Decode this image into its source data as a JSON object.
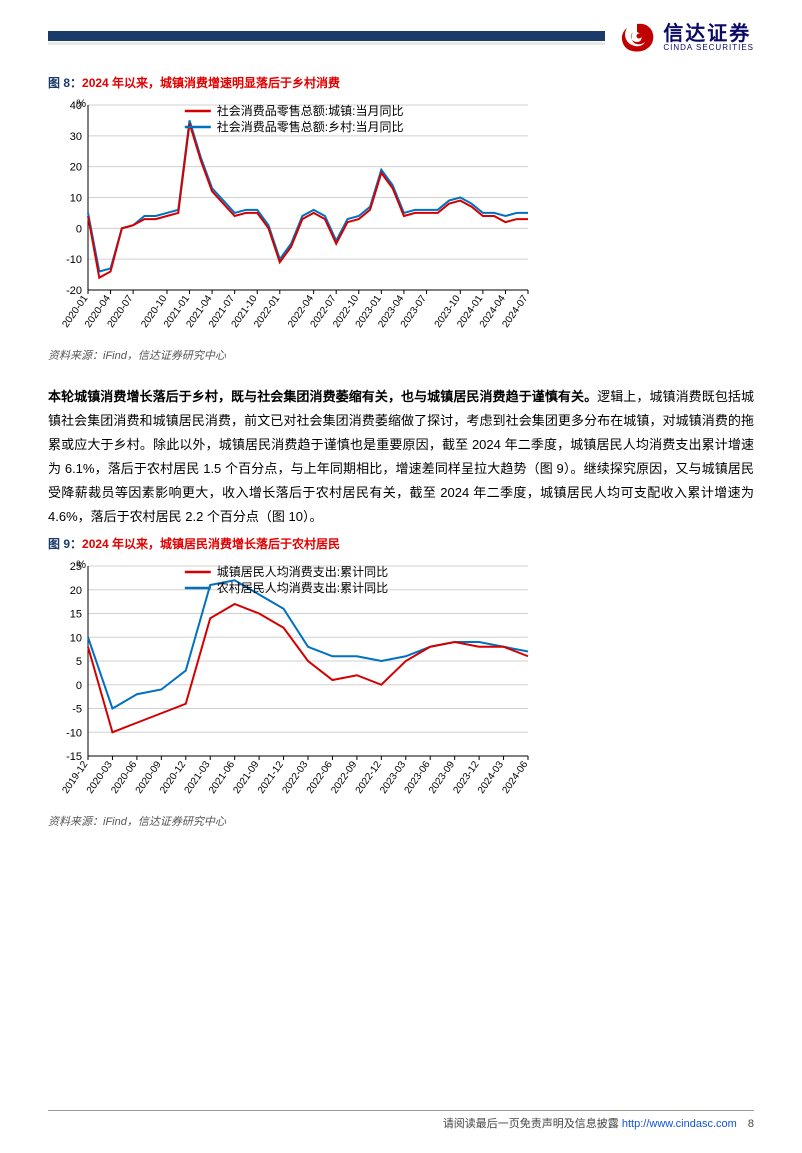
{
  "header": {
    "company_cn": "信达证券",
    "company_en": "CINDA SECURITIES"
  },
  "figure8": {
    "label": "图 8：",
    "title": "2024 年以来，城镇消费增速明显落后于乡村消费",
    "source": "资料来源：iFind，信达证券研究中心",
    "legend": {
      "s1": "社会消费品零售总额:城镇:当月同比",
      "s2": "社会消费品零售总额:乡村:当月同比"
    },
    "y_unit": "%",
    "ylim": [
      -20,
      40
    ],
    "ytick_step": 10,
    "x_labels": [
      "2020-01",
      "2020-04",
      "2020-07",
      "2020-10",
      "2021-01",
      "2021-04",
      "2021-07",
      "2021-10",
      "2022-01",
      "2022-04",
      "2022-07",
      "2022-10",
      "2023-01",
      "2023-04",
      "2023-07",
      "2023-10",
      "2024-01",
      "2024-04",
      "2024-07"
    ],
    "series": {
      "urban": [
        4,
        -16,
        -14,
        0,
        1,
        3,
        3,
        4,
        5,
        34,
        22,
        12,
        8,
        4,
        5,
        5,
        0,
        -11,
        -6,
        3,
        5,
        3,
        -5,
        2,
        3,
        6,
        18,
        13,
        4,
        5,
        5,
        5,
        8,
        9,
        7,
        4,
        4,
        2,
        3,
        3
      ],
      "rural": [
        5,
        -14,
        -13,
        0,
        1,
        4,
        4,
        5,
        6,
        35,
        23,
        13,
        9,
        5,
        6,
        6,
        1,
        -10,
        -5,
        4,
        6,
        4,
        -4,
        3,
        4,
        7,
        19,
        14,
        5,
        6,
        6,
        6,
        9,
        10,
        8,
        5,
        5,
        4,
        5,
        5
      ]
    },
    "colors": {
      "urban": "#d40000",
      "rural": "#0070c0",
      "grid": "#d0d0d0",
      "axis": "#000000",
      "bg": "#ffffff"
    },
    "line_width": 2
  },
  "paragraph": {
    "lead": "本轮城镇消费增长落后于乡村，既与社会集团消费萎缩有关，也与城镇居民消费趋于谨慎有关。",
    "body": "逻辑上，城镇消费既包括城镇社会集团消费和城镇居民消费，前文已对社会集团消费萎缩做了探讨，考虑到社会集团更多分布在城镇，对城镇消费的拖累或应大于乡村。除此以外，城镇居民消费趋于谨慎也是重要原因，截至 2024 年二季度，城镇居民人均消费支出累计增速为 6.1%，落后于农村居民 1.5 个百分点，与上年同期相比，增速差同样呈拉大趋势（图 9）。继续探究原因，又与城镇居民受降薪裁员等因素影响更大，收入增长落后于农村居民有关，截至 2024 年二季度，城镇居民人均可支配收入累计增速为 4.6%，落后于农村居民 2.2 个百分点（图 10）。"
  },
  "figure9": {
    "label": "图 9：",
    "title": "2024 年以来，城镇居民消费增长落后于农村居民",
    "source": "资料来源：iFind，信达证券研究中心",
    "legend": {
      "s1": "城镇居民人均消费支出:累计同比",
      "s2": "农村居民人均消费支出:累计同比"
    },
    "y_unit": "%",
    "ylim": [
      -15,
      25
    ],
    "ytick_step": 5,
    "x_labels": [
      "2019-12",
      "2020-03",
      "2020-06",
      "2020-09",
      "2020-12",
      "2021-03",
      "2021-06",
      "2021-09",
      "2021-12",
      "2022-03",
      "2022-06",
      "2022-09",
      "2022-12",
      "2023-03",
      "2023-06",
      "2023-09",
      "2023-12",
      "2024-03",
      "2024-06"
    ],
    "series": {
      "urban": [
        8,
        -10,
        -8,
        -6,
        -4,
        14,
        17,
        15,
        12,
        5,
        1,
        2,
        0,
        5,
        8,
        9,
        8,
        8,
        6
      ],
      "rural": [
        10,
        -5,
        -2,
        -1,
        3,
        21,
        22,
        19,
        16,
        8,
        6,
        6,
        5,
        6,
        8,
        9,
        9,
        8,
        7
      ]
    },
    "colors": {
      "urban": "#d40000",
      "rural": "#0070c0",
      "grid": "#d0d0d0",
      "axis": "#000000",
      "bg": "#ffffff"
    },
    "line_width": 2
  },
  "footer": {
    "text": "请阅读最后一页免责声明及信息披露",
    "url": "http://www.cindasc.com",
    "page": "8"
  }
}
